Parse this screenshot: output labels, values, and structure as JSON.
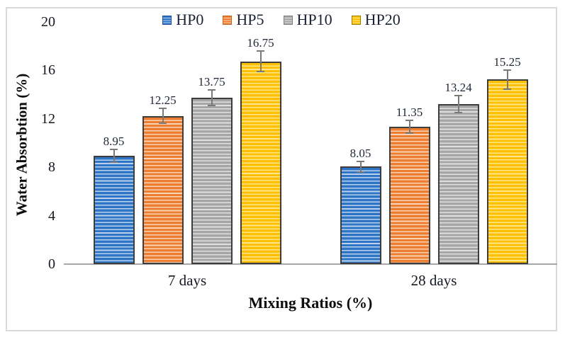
{
  "figure": {
    "background": "#ffffff",
    "frame_border_color": "#d9d9d9"
  },
  "colors": {
    "axis_line": "#a8a8a8",
    "error_bar": "#7a7a7a",
    "bar_border": "#3d3d3d",
    "text": "#1b2233"
  },
  "chart_data": {
    "type": "bar",
    "title": "",
    "xlabel": "Mixing Ratios (%)",
    "ylabel": "Water Absorbtion (%)",
    "categories": [
      "7 days",
      "28 days"
    ],
    "series": [
      {
        "name": "HP0",
        "color": "#2e75c6",
        "light": "#b9d1ef",
        "border": "#1f4e9c",
        "values": [
          8.95,
          8.05
        ],
        "errors": [
          0.5,
          0.45
        ]
      },
      {
        "name": "HP5",
        "color": "#ed7d31",
        "light": "#fbd3b5",
        "border": "#c9641f",
        "values": [
          12.25,
          11.35
        ],
        "errors": [
          0.6,
          0.55
        ]
      },
      {
        "name": "HP10",
        "color": "#a6a6a6",
        "light": "#e0e0e0",
        "border": "#7f7f7f",
        "values": [
          13.75,
          13.24
        ],
        "errors": [
          0.65,
          0.7
        ]
      },
      {
        "name": "HP20",
        "color": "#ffc000",
        "light": "#ffe68c",
        "border": "#9c7a00",
        "values": [
          16.75,
          15.25
        ],
        "errors": [
          0.85,
          0.8
        ]
      }
    ],
    "value_labels": [
      [
        "8.95",
        "8.05"
      ],
      [
        "12.25",
        "11.35"
      ],
      [
        "13.75",
        "13.24"
      ],
      [
        "16.75",
        "15.25"
      ]
    ],
    "ylim": [
      0,
      20
    ],
    "yticks": [
      0,
      4,
      8,
      12,
      16,
      20
    ],
    "grid": false,
    "legend_position": "top"
  }
}
